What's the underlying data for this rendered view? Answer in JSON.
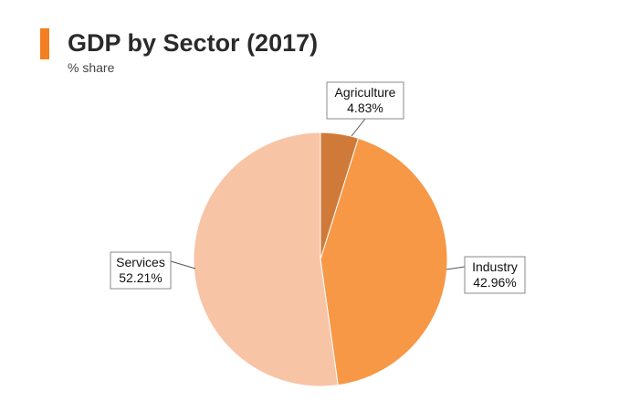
{
  "header": {
    "title": "GDP by Sector (2017)",
    "subtitle": "% share"
  },
  "colors": {
    "accent": "#f47f20",
    "agriculture": "#cf7a38",
    "industry": "#f69846",
    "services": "#f8c4a6"
  },
  "chart_data": {
    "type": "pie",
    "title": "GDP by Sector (2017)",
    "subtitle": "% share",
    "slices": [
      {
        "label": "Agriculture",
        "value": 4.83,
        "display": "4.83%",
        "color": "#cf7a38"
      },
      {
        "label": "Industry",
        "value": 42.96,
        "display": "42.96%",
        "color": "#f69846"
      },
      {
        "label": "Services",
        "value": 52.21,
        "display": "52.21%",
        "color": "#f8c4a6"
      }
    ],
    "legend": false
  }
}
